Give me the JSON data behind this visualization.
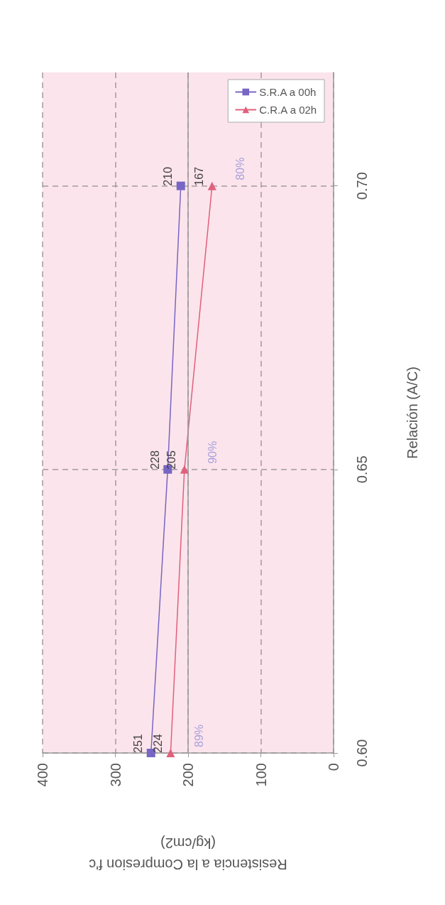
{
  "chart_data": {
    "type": "line",
    "orientation": "horizontal",
    "xlabel": "Resistencia a la Compresion f'c (kg/cm2)",
    "ylabel": "Relación (A/C)",
    "x": [
      0.6,
      0.65,
      0.7
    ],
    "series": [
      {
        "name": "S.R.A a 00h",
        "color": "#7766c4",
        "marker": "square",
        "values": [
          251,
          228,
          210
        ]
      },
      {
        "name": "C.R.A a 02h",
        "color": "#e0607c",
        "marker": "triangle",
        "values": [
          224,
          205,
          167
        ]
      }
    ],
    "xlim": [
      400,
      0
    ],
    "xticks": [
      400,
      300,
      200,
      100,
      0
    ],
    "ylim": [
      0.6,
      0.72
    ],
    "yticks": [
      {
        "value": 0.6,
        "label": "0.60"
      },
      {
        "value": 0.65,
        "label": "0.65"
      },
      {
        "value": 0.7,
        "label": "0.70"
      }
    ],
    "ref_lines": [
      {
        "axis": "x",
        "value": 200,
        "color": "#9a9a9a",
        "line_style": "solid"
      }
    ],
    "annotations": [
      "89%",
      "90%",
      "80%"
    ],
    "grid": true,
    "legend": "top right",
    "data_labels": true,
    "line_style": "solid"
  }
}
